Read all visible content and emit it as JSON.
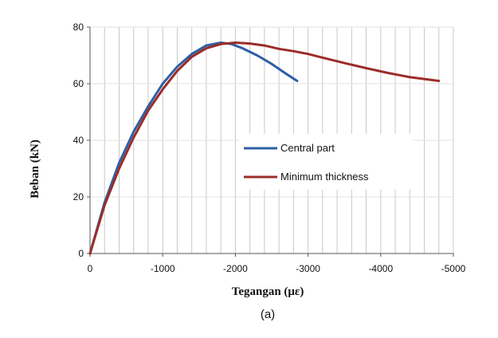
{
  "chart_data": {
    "type": "line",
    "xlabel": "Tegangan (με)",
    "ylabel": "Beban (kN)",
    "caption": "(a)",
    "xlim": [
      0,
      -5000
    ],
    "ylim": [
      0,
      80
    ],
    "x_ticks": [
      0,
      -1000,
      -2000,
      -3000,
      -4000,
      -5000
    ],
    "x_tick_labels": [
      "0",
      "-1000",
      "-2000",
      "-3000",
      "-4000",
      "-5000"
    ],
    "y_ticks": [
      0,
      20,
      40,
      60,
      80
    ],
    "y_tick_labels": [
      "0",
      "20",
      "40",
      "60",
      "80"
    ],
    "grid": "vertical",
    "legend_position": "center-right",
    "series": [
      {
        "name": "Central part",
        "color": "#2e5fa3",
        "points": [
          [
            0,
            0
          ],
          [
            -200,
            18
          ],
          [
            -400,
            32
          ],
          [
            -600,
            43
          ],
          [
            -800,
            52
          ],
          [
            -1000,
            60
          ],
          [
            -1200,
            66
          ],
          [
            -1400,
            70.5
          ],
          [
            -1600,
            73.5
          ],
          [
            -1800,
            74.5
          ],
          [
            -1950,
            74
          ],
          [
            -2100,
            72.5
          ],
          [
            -2300,
            70
          ],
          [
            -2500,
            67
          ],
          [
            -2700,
            63.5
          ],
          [
            -2850,
            61
          ]
        ]
      },
      {
        "name": "Minimum thickness",
        "color": "#9b2d2a",
        "points": [
          [
            0,
            0
          ],
          [
            -200,
            17
          ],
          [
            -400,
            30
          ],
          [
            -600,
            41
          ],
          [
            -800,
            50.5
          ],
          [
            -1000,
            58
          ],
          [
            -1200,
            64.5
          ],
          [
            -1400,
            69.5
          ],
          [
            -1600,
            72.5
          ],
          [
            -1800,
            74
          ],
          [
            -2000,
            74.5
          ],
          [
            -2200,
            74.2
          ],
          [
            -2400,
            73.5
          ],
          [
            -2600,
            72.3
          ],
          [
            -2800,
            71.5
          ],
          [
            -3000,
            70.5
          ],
          [
            -3200,
            69.2
          ],
          [
            -3500,
            67.3
          ],
          [
            -3800,
            65.5
          ],
          [
            -4100,
            63.8
          ],
          [
            -4400,
            62.3
          ],
          [
            -4800,
            61
          ]
        ]
      }
    ]
  }
}
